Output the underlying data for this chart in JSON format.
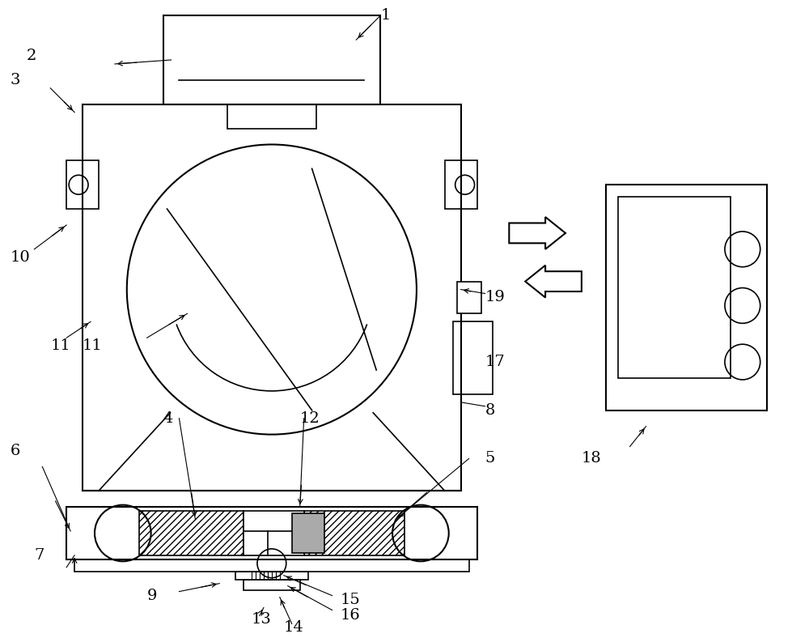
{
  "bg_color": "#ffffff",
  "line_color": "#000000",
  "line_width": 1.5,
  "label_fontsize": 14,
  "fig_width": 10.0,
  "fig_height": 7.88
}
